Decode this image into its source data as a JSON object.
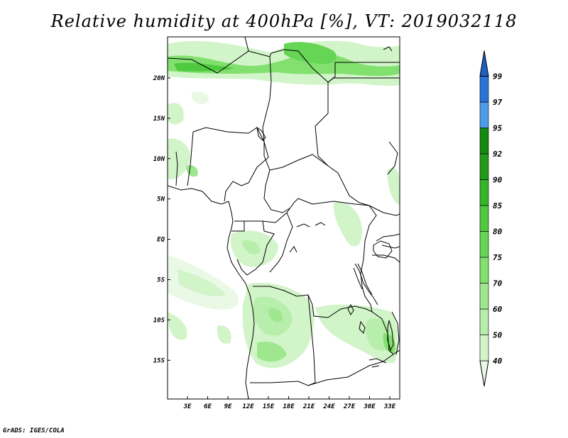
{
  "title": "Relative humidity at 400hPa [%], VT: 2019032118",
  "credit": "GrADS: IGES/COLA",
  "map": {
    "lat_labels": [
      "20N",
      "15N",
      "10N",
      "5N",
      "EQ",
      "5S",
      "10S",
      "15S"
    ],
    "lon_labels": [
      "3E",
      "6E",
      "9E",
      "12E",
      "15E",
      "18E",
      "21E",
      "24E",
      "27E",
      "30E",
      "33E"
    ]
  },
  "colorbar": {
    "levels": [
      "40",
      "50",
      "60",
      "70",
      "75",
      "80",
      "85",
      "90",
      "92",
      "95",
      "97",
      "99"
    ],
    "colors": [
      "#eaf8e6",
      "#d2f4c9",
      "#b8eeab",
      "#9ee78f",
      "#82e06f",
      "#66d555",
      "#4fc93f",
      "#36b52a",
      "#219a1a",
      "#128a10",
      "#4c9ce8",
      "#2a74d8",
      "#1e5fc4"
    ]
  }
}
